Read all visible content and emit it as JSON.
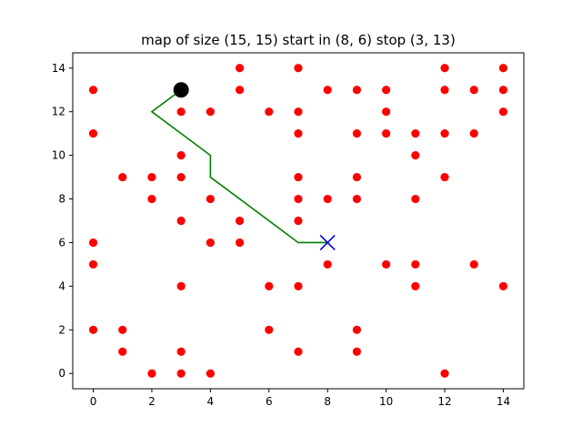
{
  "chart_data": {
    "type": "scatter",
    "title": "map of size (15, 15) start in (8, 6) stop (3, 13)",
    "xlabel": "",
    "ylabel": "",
    "xlim": [
      -0.7,
      14.7
    ],
    "ylim": [
      -0.7,
      14.7
    ],
    "xticks": [
      0,
      2,
      4,
      6,
      8,
      10,
      12,
      14
    ],
    "yticks": [
      0,
      2,
      4,
      6,
      8,
      10,
      12,
      14
    ],
    "grid": false,
    "legend": "none",
    "colors": {
      "obstacles": "#ff0000",
      "path": "#008000",
      "start": "#0000cc",
      "stop": "#000000"
    },
    "start": [
      8,
      6
    ],
    "stop": [
      3,
      13
    ],
    "path": [
      [
        8,
        6
      ],
      [
        7,
        6
      ],
      [
        4,
        9
      ],
      [
        4,
        10
      ],
      [
        2,
        12
      ],
      [
        3,
        13
      ]
    ],
    "obstacles": [
      [
        0,
        2
      ],
      [
        0,
        5
      ],
      [
        0,
        6
      ],
      [
        0,
        11
      ],
      [
        0,
        13
      ],
      [
        1,
        1
      ],
      [
        1,
        2
      ],
      [
        1,
        9
      ],
      [
        2,
        0
      ],
      [
        2,
        8
      ],
      [
        2,
        9
      ],
      [
        3,
        0
      ],
      [
        3,
        1
      ],
      [
        3,
        4
      ],
      [
        3,
        7
      ],
      [
        3,
        9
      ],
      [
        3,
        10
      ],
      [
        3,
        12
      ],
      [
        4,
        0
      ],
      [
        4,
        6
      ],
      [
        4,
        8
      ],
      [
        4,
        12
      ],
      [
        5,
        6
      ],
      [
        5,
        7
      ],
      [
        5,
        13
      ],
      [
        5,
        14
      ],
      [
        6,
        2
      ],
      [
        6,
        4
      ],
      [
        6,
        12
      ],
      [
        7,
        1
      ],
      [
        7,
        4
      ],
      [
        7,
        7
      ],
      [
        7,
        8
      ],
      [
        7,
        9
      ],
      [
        7,
        11
      ],
      [
        7,
        12
      ],
      [
        7,
        14
      ],
      [
        8,
        5
      ],
      [
        8,
        8
      ],
      [
        8,
        13
      ],
      [
        9,
        1
      ],
      [
        9,
        2
      ],
      [
        9,
        8
      ],
      [
        9,
        9
      ],
      [
        9,
        11
      ],
      [
        9,
        13
      ],
      [
        10,
        5
      ],
      [
        10,
        11
      ],
      [
        10,
        12
      ],
      [
        10,
        13
      ],
      [
        11,
        4
      ],
      [
        11,
        5
      ],
      [
        11,
        8
      ],
      [
        11,
        10
      ],
      [
        11,
        11
      ],
      [
        12,
        0
      ],
      [
        12,
        9
      ],
      [
        12,
        11
      ],
      [
        12,
        13
      ],
      [
        12,
        14
      ],
      [
        13,
        5
      ],
      [
        13,
        11
      ],
      [
        13,
        13
      ],
      [
        14,
        4
      ],
      [
        14,
        12
      ],
      [
        14,
        13
      ],
      [
        14,
        14
      ]
    ]
  }
}
